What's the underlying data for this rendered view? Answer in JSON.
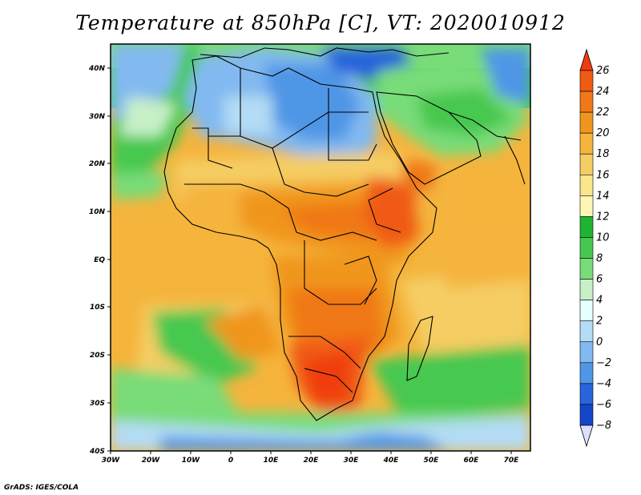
{
  "title": "Temperature at 850hPa [C], VT: 2020010912",
  "credit": "GrADS: IGES/COLA",
  "axes": {
    "lon_labels": [
      "30W",
      "20W",
      "10W",
      "0",
      "10E",
      "20E",
      "30E",
      "40E",
      "50E",
      "60E",
      "70E"
    ],
    "lat_labels": [
      "40N",
      "30N",
      "20N",
      "10N",
      "EQ",
      "10S",
      "20S",
      "30S",
      "40S"
    ],
    "lon_range": [
      -30,
      75
    ],
    "lat_range": [
      -40,
      45
    ]
  },
  "colorbar": {
    "unit": "C",
    "labels": [
      "26",
      "24",
      "22",
      "20",
      "18",
      "16",
      "14",
      "12",
      "10",
      "8",
      "6",
      "4",
      "2",
      "0",
      "−2",
      "−4",
      "−6",
      "−8"
    ],
    "colors": [
      "#f03c10",
      "#f05a14",
      "#f07818",
      "#f0961e",
      "#f5b43c",
      "#f5cd64",
      "#fae68c",
      "#fff5b4",
      "#1eb432",
      "#46c850",
      "#78dc78",
      "#c8f0c8",
      "#e6ffff",
      "#b4dcf5",
      "#82b9f0",
      "#5096e6",
      "#2864dc",
      "#1446c8",
      "#1428a0"
    ]
  }
}
